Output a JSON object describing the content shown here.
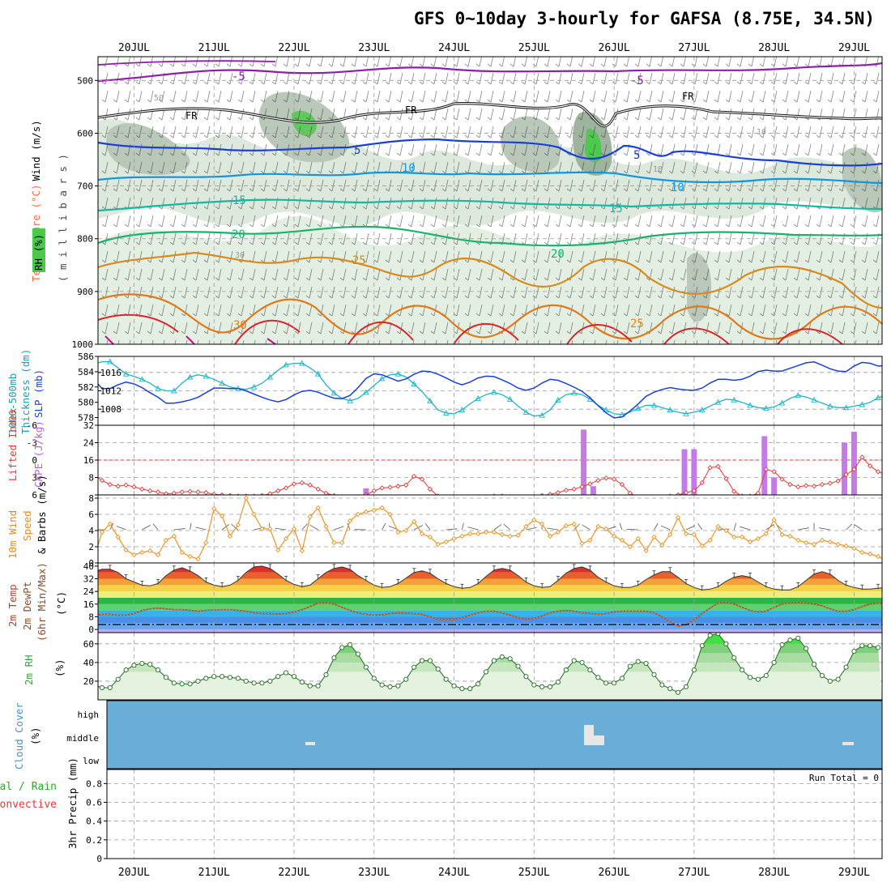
{
  "chart_data": {
    "type": "meteogram",
    "title": "GFS 0~10day 3-hourly for GAFSA (8.75E, 34.5N)",
    "days": [
      "20JUL",
      "21JUL",
      "22JUL",
      "23JUL",
      "24JUL",
      "25JUL",
      "26JUL",
      "27JUL",
      "28JUL",
      "29JUL"
    ],
    "x_range_days": [
      19.55,
      29.35
    ],
    "upper_air": {
      "ylabel_pressure": "( m i l l i b a r s )",
      "ylabel_temp": "Temperature (°C)",
      "ylabel_wind": "Wind (m/s)",
      "ylabel_rh": "RH (%)",
      "pressure_ticks": [
        500,
        600,
        700,
        800,
        900,
        1000
      ],
      "pressure_range": [
        455,
        1000
      ],
      "contour_labels": {
        "temp_minus5": "-5",
        "freezing": "FR",
        "temp_5": "5",
        "temp_10": "10",
        "temp_15": "15",
        "temp_20": "20",
        "temp_25": "25",
        "temp_30": "30",
        "rh_50": "50",
        "rh_30": "30",
        "rh_10": "10"
      }
    },
    "slp_thickness": {
      "ylabel_thickness_1": "1000-500mb",
      "ylabel_thickness_2": "Thickness (dm)",
      "ylabel_slp": "SLP (mb)",
      "thickness_ticks": [
        578,
        580,
        582,
        584,
        586
      ],
      "thickness_range": [
        577,
        586
      ],
      "slp_ticks": [
        1008,
        1012,
        1016
      ],
      "slp_range": [
        1004.5,
        1019.5
      ],
      "thickness": [
        585,
        585.3,
        585.3,
        584.5,
        583.7,
        583.4,
        583,
        582.5,
        581.8,
        581.5,
        581.5,
        582.5,
        583.3,
        583.6,
        583.4,
        583,
        582.5,
        582,
        581.8,
        581.7,
        582,
        582.5,
        583.3,
        584.2,
        584.9,
        585.1,
        585.1,
        584.5,
        583.7,
        582.3,
        581.2,
        580.5,
        580.2,
        580.5,
        581.3,
        582.2,
        583.1,
        583.6,
        583.7,
        583.3,
        582.4,
        581.4,
        580.2,
        579,
        578.6,
        578.5,
        579,
        579.8,
        580.5,
        581,
        581.3,
        581,
        580.4,
        579.5,
        578.7,
        578.2,
        578.3,
        579,
        580.3,
        581,
        581.2,
        581,
        580.4,
        579.6,
        579,
        578.5,
        578.4,
        578.7,
        579.2,
        579.6,
        579.6,
        579.3,
        579,
        578.7,
        578.5,
        578.7,
        579,
        579.5,
        580,
        580.4,
        580.3,
        580,
        579.6,
        579.3,
        579.2,
        579.4,
        579.9,
        580.5,
        580.9,
        580.7,
        580.3,
        579.9,
        579.5,
        579.3,
        579.3,
        579.5,
        579.7,
        580,
        580.6,
        580.9,
        581.2
      ],
      "slp": [
        1014.5,
        1012.5,
        1012.5,
        1013.3,
        1013.9,
        1013.5,
        1012.7,
        1011.6,
        1010.6,
        1009.3,
        1009.3,
        1009.6,
        1010,
        1010.6,
        1011.6,
        1012.6,
        1012.6,
        1012.5,
        1012.5,
        1012,
        1011.3,
        1010.6,
        1010,
        1009.6,
        1010.1,
        1011.1,
        1011.9,
        1012.1,
        1011.7,
        1011,
        1010.4,
        1010.3,
        1011,
        1012.7,
        1014.7,
        1015.7,
        1015.5,
        1014.8,
        1014.1,
        1014.6,
        1015.6,
        1016.3,
        1016.2,
        1015.6,
        1014.8,
        1013.9,
        1013.3,
        1013.9,
        1014.8,
        1015.2,
        1015.1,
        1014.4,
        1013.6,
        1012.6,
        1012.1,
        1012.6,
        1013.7,
        1014.5,
        1014.3,
        1013.6,
        1012.8,
        1011.9,
        1010.5,
        1008.8,
        1007.2,
        1006.1,
        1006.3,
        1007.6,
        1009.1,
        1010.8,
        1011.7,
        1012.3,
        1012.7,
        1012.4,
        1012.2,
        1012.1,
        1012.6,
        1013.7,
        1014.5,
        1014.5,
        1014.3,
        1014.5,
        1015.2,
        1016.2,
        1016.5,
        1016.3,
        1016.3,
        1016.9,
        1017.5,
        1018.1,
        1018.3,
        1017.6,
        1016.8,
        1016.3,
        1016.2,
        1017.4,
        1018.2,
        1018,
        1017.4,
        1017.5,
        1017.9
      ]
    },
    "cape_li": {
      "ylabel_li": "Lifted Index",
      "ylabel_cape": "CAPE (J/kg)",
      "li_ticks": [
        -6,
        -3,
        0,
        3,
        6
      ],
      "li_range": [
        -6,
        6
      ],
      "cape_ticks": [
        8,
        16,
        24,
        32
      ],
      "cape_range": [
        0,
        32
      ],
      "cape_bars": [
        {
          "day": 22.9,
          "value": 3
        },
        {
          "day": 25.62,
          "value": 30
        },
        {
          "day": 25.74,
          "value": 4
        },
        {
          "day": 26.88,
          "value": 21
        },
        {
          "day": 27.0,
          "value": 21
        },
        {
          "day": 27.88,
          "value": 27
        },
        {
          "day": 28.0,
          "value": 8
        },
        {
          "day": 28.88,
          "value": 24
        },
        {
          "day": 29.0,
          "value": 29
        }
      ],
      "lifted_index": [
        2.5,
        3.5,
        4.2,
        4.5,
        4.3,
        4.6,
        5,
        5.3,
        5.5,
        5.8,
        5.7,
        5.5,
        5.4,
        5.5,
        5.6,
        5.9,
        6,
        6.1,
        6.2,
        6.2,
        6.2,
        6.1,
        5.8,
        5.3,
        4.8,
        4.1,
        3.9,
        4.3,
        5,
        5.7,
        6.1,
        6.3,
        6.4,
        6.3,
        6,
        5.3,
        4.8,
        4.7,
        4.5,
        4.3,
        2.8,
        3.3,
        5,
        6.2,
        6.5,
        6.6,
        6.5,
        6.4,
        6.3,
        6.3,
        6.2,
        6.2,
        6.3,
        6.4,
        6.5,
        6.3,
        6.1,
        5.9,
        5.6,
        5.2,
        5,
        4.6,
        4.1,
        3.5,
        3.1,
        3.3,
        4.2,
        5.7,
        6.4,
        6.5,
        6.5,
        6.4,
        6.2,
        6,
        5.6,
        5.3,
        3.9,
        1.3,
        1.1,
        3.2,
        5.4,
        6.2,
        6.2,
        5.7,
        1.6,
        2,
        3.3,
        4.2,
        4.6,
        4.4,
        4.5,
        4.2,
        4,
        3.6,
        2.5,
        1.6,
        -0.5,
        1,
        2,
        2.6,
        3.2
      ]
    },
    "wind10m": {
      "ylabel_1": "10m Wind",
      "ylabel_2": "Speed",
      "ylabel_3": "& Barbs (m/s)",
      "ticks": [
        0,
        2,
        4,
        6,
        8
      ],
      "range": [
        0,
        8.4
      ],
      "speed": [
        0.5,
        3.8,
        4.8,
        3.2,
        1.6,
        1,
        1.3,
        1.5,
        1,
        2.8,
        3.3,
        1.3,
        0.8,
        0.5,
        2.5,
        6.7,
        5.8,
        3.3,
        4.7,
        8,
        6,
        4.2,
        4.2,
        1.6,
        3,
        4.2,
        1.5,
        5.7,
        6.8,
        4.5,
        2.5,
        2.5,
        5.2,
        6,
        6.3,
        6.5,
        6.8,
        6,
        3.8,
        4,
        5.1,
        3.6,
        3.2,
        2.3,
        2.6,
        3,
        3.3,
        3.6,
        3.6,
        3.8,
        3.8,
        3.5,
        3.3,
        3.4,
        4.5,
        5.3,
        4.8,
        3.3,
        3.8,
        4.6,
        4.8,
        2.4,
        2.8,
        4.5,
        4.2,
        3.3,
        2.8,
        2,
        3,
        1.5,
        3.2,
        2.2,
        3.5,
        5.6,
        3.6,
        3.5,
        2.1,
        2.8,
        4.5,
        4,
        3.2,
        3.2,
        2.6,
        3,
        3.6,
        5.3,
        3.5,
        3.3,
        2.8,
        2.5,
        2.3,
        2.8,
        2.6,
        2.3,
        2.1,
        1.8,
        1.3,
        1.1,
        0.8,
        0.3,
        0.7
      ]
    },
    "temp2m": {
      "ylabel_1": "2m Temp",
      "ylabel_2": "2m DewPt",
      "ylabel_3": "(6hr Min/Max)",
      "ylabel_unit": "(°C)",
      "ticks": [
        0,
        8,
        16,
        24,
        32,
        40
      ],
      "range": [
        -2,
        42
      ],
      "temperature": [
        36.5,
        38,
        38,
        36,
        32,
        30,
        28,
        27.5,
        29,
        34,
        37.5,
        39,
        37,
        34,
        30,
        28,
        27,
        28,
        31,
        36,
        39.5,
        40,
        38.5,
        35,
        31,
        28.5,
        27,
        28,
        32,
        36,
        38.5,
        39.5,
        38,
        34,
        31,
        28,
        26.5,
        27,
        29,
        32.5,
        36,
        37,
        35.5,
        32,
        29,
        27,
        26,
        26.5,
        29,
        33.5,
        37.5,
        38.5,
        37.5,
        34,
        30,
        27.5,
        26.5,
        27,
        31,
        35.5,
        38.5,
        39.5,
        37.5,
        33,
        30,
        27.5,
        26.5,
        26.5,
        28,
        31.5,
        34.5,
        36.5,
        36.5,
        33,
        29,
        26.5,
        25,
        25.5,
        27,
        30.5,
        33,
        34,
        33,
        30,
        27,
        25.5,
        25,
        25,
        27,
        31,
        35,
        36.5,
        35,
        31,
        28,
        26.5,
        25.5,
        25.5,
        26,
        26.5,
        26
      ],
      "dewpoint": [
        9,
        9.5,
        9.5,
        9,
        9,
        10,
        12,
        13,
        13.5,
        13,
        12.5,
        12.5,
        12,
        11.5,
        12,
        12.3,
        12.5,
        12.5,
        12,
        11.5,
        10.5,
        10,
        10,
        9.8,
        10,
        11,
        12.5,
        14.5,
        16.5,
        17,
        16,
        14,
        12,
        10.5,
        9.5,
        9,
        9.2,
        10,
        10.5,
        10.3,
        10,
        9.5,
        8,
        6.5,
        6.5,
        6.5,
        7.5,
        9,
        10.5,
        11.5,
        11.5,
        10.5,
        9,
        7.5,
        6.5,
        7,
        8.5,
        10.5,
        11.5,
        12,
        11.5,
        10.5,
        10,
        9.5,
        10,
        11,
        11.5,
        11.5,
        11.5,
        11.5,
        10.5,
        8,
        5,
        2,
        3,
        6,
        10,
        13.5,
        16.5,
        17,
        16,
        14,
        12,
        11,
        11.5,
        14,
        16,
        17,
        17,
        16.5,
        16,
        15,
        13,
        11.5,
        11.5,
        12.5,
        14.5,
        16,
        16.5,
        16.5,
        16.5
      ]
    },
    "rh2m": {
      "ylabel": "2m RH",
      "ylabel_unit": "(%)",
      "ticks": [
        20,
        40,
        60
      ],
      "range": [
        0,
        72
      ],
      "values": [
        16,
        13,
        13,
        22,
        32,
        37,
        39,
        38,
        32,
        24,
        18,
        17,
        17,
        20,
        23,
        25,
        25,
        24,
        23,
        20,
        18,
        18,
        20,
        25,
        29,
        25,
        19,
        15,
        15,
        27,
        45,
        56,
        59,
        49,
        35,
        23,
        16,
        14,
        15,
        22,
        35,
        42,
        42,
        33,
        22,
        15,
        12,
        12,
        17,
        30,
        42,
        46,
        44,
        36,
        25,
        16,
        14,
        14,
        19,
        32,
        42,
        40,
        32,
        24,
        18,
        18,
        23,
        36,
        41,
        39,
        27,
        16,
        12,
        8,
        14,
        32,
        58,
        69,
        71,
        60,
        45,
        32,
        24,
        22,
        26,
        40,
        59,
        64,
        66,
        55,
        38,
        26,
        20,
        22,
        35,
        52,
        58,
        58,
        56
      ]
    },
    "cloud_cover": {
      "ylabel": "Cloud Cover",
      "ylabel_unit": "(%)",
      "levels": [
        "high",
        "middle",
        "low"
      ]
    },
    "precip": {
      "ylabel": "3hr Precip (mm)",
      "legend_total": "Total / Rain",
      "legend_convective": "Convective",
      "run_total": "Run Total = 0",
      "ticks": [
        0,
        0.2,
        0.4,
        0.6,
        0.8
      ],
      "range": [
        0,
        0.95
      ]
    }
  }
}
